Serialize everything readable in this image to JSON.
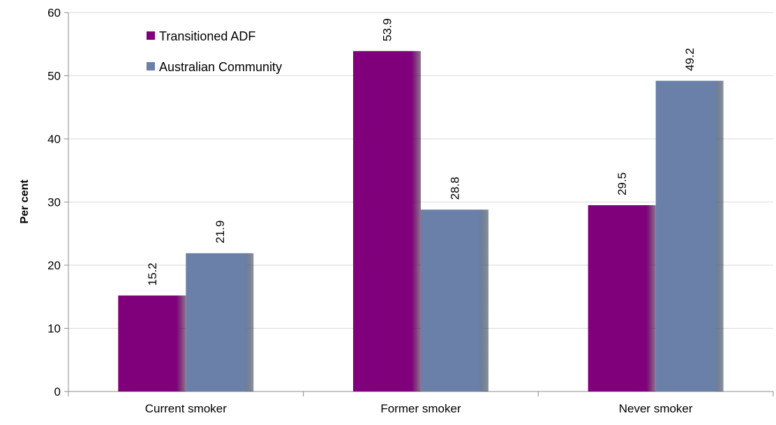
{
  "chart_data": {
    "type": "bar",
    "title": "",
    "xlabel": "",
    "ylabel": "Per cent",
    "categories": [
      "Current smoker",
      "Former smoker",
      "Never smoker"
    ],
    "series": [
      {
        "name": "Transitioned ADF",
        "values": [
          15.2,
          53.9,
          29.5
        ],
        "color": "#7f007a",
        "labels": [
          "15.2",
          "53.9",
          "29.5"
        ]
      },
      {
        "name": "Australian Community",
        "values": [
          21.9,
          28.8,
          49.2
        ],
        "color": "#6a80a8",
        "labels": [
          "21.9",
          "28.8",
          "49.2"
        ]
      }
    ],
    "ylim": [
      0,
      60
    ],
    "yticks": [
      0,
      10,
      20,
      30,
      40,
      50,
      60
    ],
    "grid": true,
    "legend_position": "top-left",
    "data_label_orientation": "vertical"
  }
}
